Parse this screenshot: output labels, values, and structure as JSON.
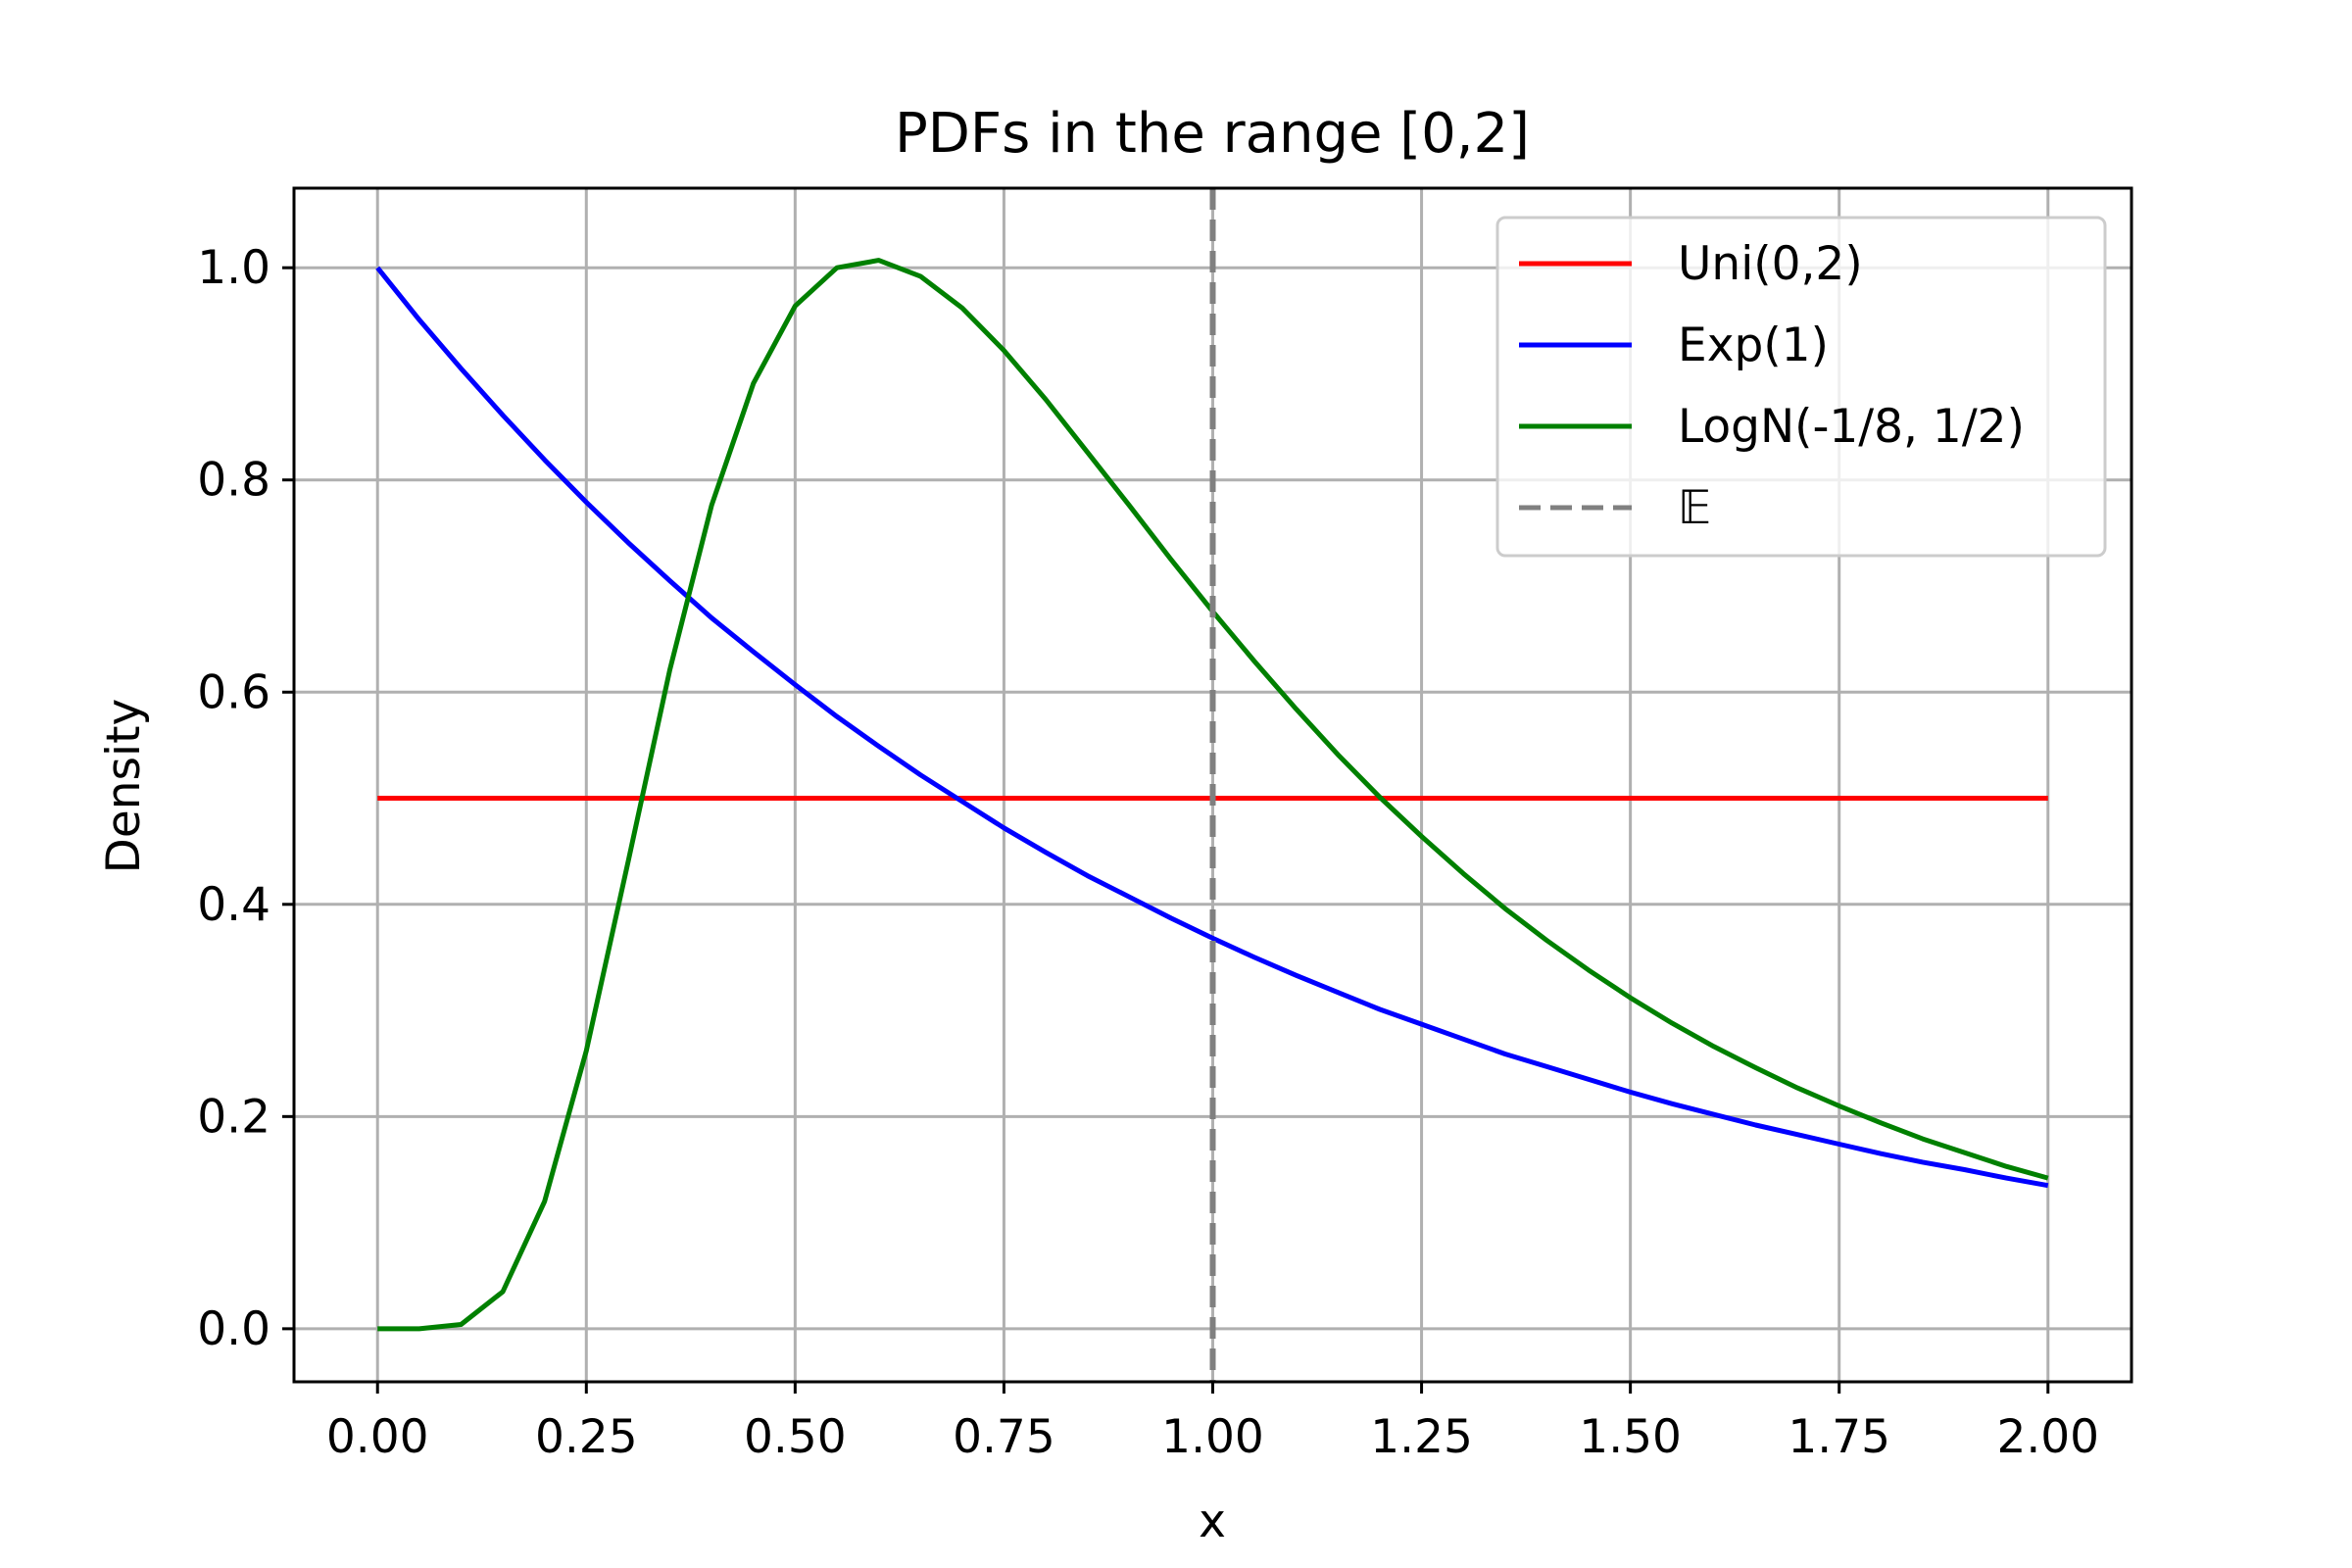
{
  "chart_data": {
    "type": "line",
    "title": "PDFs in the range [0,2]",
    "xlabel": "x",
    "ylabel": "Density",
    "xlim": [
      -0.1,
      2.1
    ],
    "ylim": [
      -0.05,
      1.075
    ],
    "xticks": [
      0.0,
      0.25,
      0.5,
      0.75,
      1.0,
      1.25,
      1.5,
      1.75,
      2.0
    ],
    "xtick_labels": [
      "0.00",
      "0.25",
      "0.50",
      "0.75",
      "1.00",
      "1.25",
      "1.50",
      "1.75",
      "2.00"
    ],
    "yticks": [
      0.0,
      0.2,
      0.4,
      0.6,
      0.8,
      1.0
    ],
    "ytick_labels": [
      "0.0",
      "0.2",
      "0.4",
      "0.6",
      "0.8",
      "1.0"
    ],
    "grid": true,
    "legend_position": "top-right",
    "x": [
      0.0,
      0.05,
      0.1,
      0.15,
      0.2,
      0.25,
      0.3,
      0.35,
      0.4,
      0.45,
      0.5,
      0.55,
      0.6,
      0.65,
      0.7,
      0.75,
      0.8,
      0.85,
      0.9,
      0.95,
      1.0,
      1.05,
      1.1,
      1.15,
      1.2,
      1.25,
      1.3,
      1.35,
      1.4,
      1.45,
      1.5,
      1.55,
      1.6,
      1.65,
      1.7,
      1.75,
      1.8,
      1.85,
      1.9,
      1.95,
      2.0
    ],
    "series": [
      {
        "name": "Uni(0,2)",
        "color": "#ff0000",
        "style": "solid",
        "values": [
          0.5,
          0.5,
          0.5,
          0.5,
          0.5,
          0.5,
          0.5,
          0.5,
          0.5,
          0.5,
          0.5,
          0.5,
          0.5,
          0.5,
          0.5,
          0.5,
          0.5,
          0.5,
          0.5,
          0.5,
          0.5,
          0.5,
          0.5,
          0.5,
          0.5,
          0.5,
          0.5,
          0.5,
          0.5,
          0.5,
          0.5,
          0.5,
          0.5,
          0.5,
          0.5,
          0.5,
          0.5,
          0.5,
          0.5,
          0.5,
          0.5
        ]
      },
      {
        "name": "Exp(1)",
        "color": "#0000ff",
        "style": "solid",
        "values": [
          1.0,
          0.951,
          0.905,
          0.861,
          0.819,
          0.779,
          0.741,
          0.705,
          0.67,
          0.638,
          0.607,
          0.577,
          0.549,
          0.522,
          0.497,
          0.472,
          0.449,
          0.427,
          0.407,
          0.387,
          0.368,
          0.35,
          0.333,
          0.317,
          0.301,
          0.287,
          0.273,
          0.259,
          0.247,
          0.235,
          0.223,
          0.212,
          0.202,
          0.192,
          0.183,
          0.174,
          0.165,
          0.157,
          0.15,
          0.142,
          0.135
        ]
      },
      {
        "name": "LogN(-1/8, 1/2)",
        "color": "#008000",
        "style": "solid",
        "values": [
          0.0,
          0.0,
          0.004,
          0.035,
          0.12,
          0.262,
          0.44,
          0.621,
          0.776,
          0.891,
          0.964,
          1.0,
          1.007,
          0.992,
          0.962,
          0.922,
          0.876,
          0.826,
          0.776,
          0.725,
          0.676,
          0.629,
          0.584,
          0.541,
          0.501,
          0.464,
          0.429,
          0.396,
          0.366,
          0.338,
          0.312,
          0.288,
          0.266,
          0.246,
          0.227,
          0.21,
          0.194,
          0.179,
          0.166,
          0.153,
          0.142
        ]
      }
    ],
    "vlines": [
      {
        "name": "𝔼",
        "x": 1.0,
        "color": "#808080",
        "style": "dashed"
      }
    ]
  }
}
